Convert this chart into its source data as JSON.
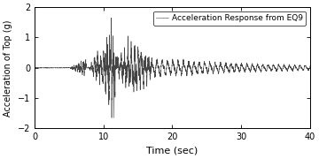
{
  "xlabel": "Time (sec)",
  "ylabel": "Acceleration of Top (g)",
  "legend_label": "Acceleration Response from EQ9",
  "xlim": [
    0,
    40
  ],
  "ylim": [
    -2,
    2
  ],
  "xticks": [
    0,
    10,
    20,
    30,
    40
  ],
  "yticks": [
    -2,
    -1,
    0,
    1,
    2
  ],
  "line_color": "#444444",
  "bg_color": "#ffffff",
  "dt": 0.005,
  "duration": 40.0,
  "seed": 7
}
